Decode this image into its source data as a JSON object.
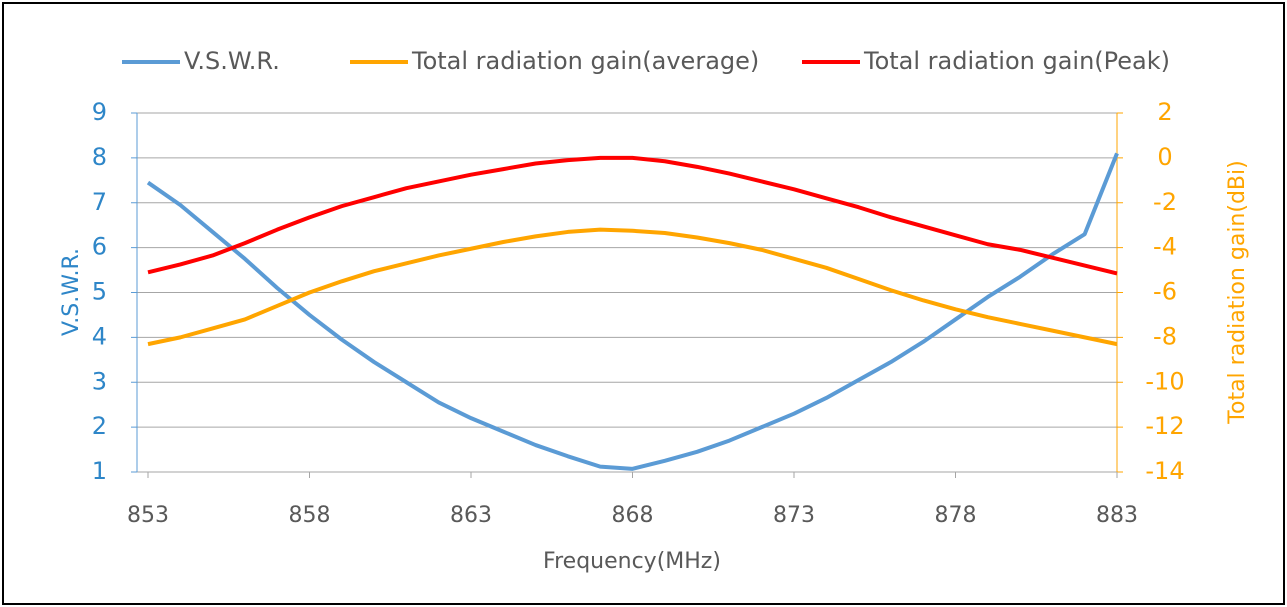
{
  "chart_data": {
    "type": "line",
    "x": [
      853,
      854,
      855,
      856,
      857,
      858,
      859,
      860,
      861,
      862,
      863,
      864,
      865,
      866,
      867,
      868,
      869,
      870,
      871,
      872,
      873,
      874,
      875,
      876,
      877,
      878,
      879,
      880,
      881,
      882,
      883
    ],
    "xlim": [
      853,
      883
    ],
    "xticks": [
      853,
      858,
      863,
      868,
      873,
      878,
      883
    ],
    "xlabel": "Frequency(MHz)",
    "ylabel": "V.S.W.R.",
    "ylim": [
      1,
      9
    ],
    "yticks": [
      1,
      2,
      3,
      4,
      5,
      6,
      7,
      8,
      9
    ],
    "y2label": "Total radiation gain(dBi)",
    "y2lim": [
      -14,
      2
    ],
    "y2ticks": [
      -14,
      -12,
      -10,
      -8,
      -6,
      -4,
      -2,
      0,
      2
    ],
    "grid": true,
    "legend": "top",
    "series": [
      {
        "name": "V.S.W.R.",
        "color": "#5b9bd5",
        "values": [
          7.45,
          6.95,
          6.35,
          5.75,
          5.1,
          4.5,
          3.95,
          3.45,
          3.0,
          2.55,
          2.2,
          1.9,
          1.6,
          1.35,
          1.12,
          1.07,
          1.25,
          1.45,
          1.7,
          2.0,
          2.3,
          2.65,
          3.05,
          3.45,
          3.9,
          4.4,
          4.9,
          5.35,
          5.85,
          6.3,
          8.1
        ]
      },
      {
        "name": "Total radiation gain(average)",
        "color": "#ffa500",
        "axis": "y2",
        "values": [
          -8.3,
          -8.0,
          -7.6,
          -7.2,
          -6.6,
          -6.0,
          -5.5,
          -5.05,
          -4.7,
          -4.35,
          -4.05,
          -3.75,
          -3.5,
          -3.3,
          -3.2,
          -3.25,
          -3.35,
          -3.55,
          -3.8,
          -4.1,
          -4.5,
          -4.9,
          -5.4,
          -5.9,
          -6.35,
          -6.75,
          -7.1,
          -7.4,
          -7.7,
          -8.0,
          -8.3
        ]
      },
      {
        "name": "Total radiation gain(Peak)",
        "color": "#ff0000",
        "axis": "y2",
        "values": [
          -5.1,
          -4.75,
          -4.35,
          -3.8,
          -3.2,
          -2.65,
          -2.15,
          -1.75,
          -1.35,
          -1.05,
          -0.75,
          -0.5,
          -0.25,
          -0.1,
          0,
          0,
          -0.15,
          -0.4,
          -0.7,
          -1.05,
          -1.4,
          -1.8,
          -2.2,
          -2.65,
          -3.05,
          -3.45,
          -3.85,
          -4.1,
          -4.45,
          -4.8,
          -5.15
        ]
      }
    ]
  }
}
